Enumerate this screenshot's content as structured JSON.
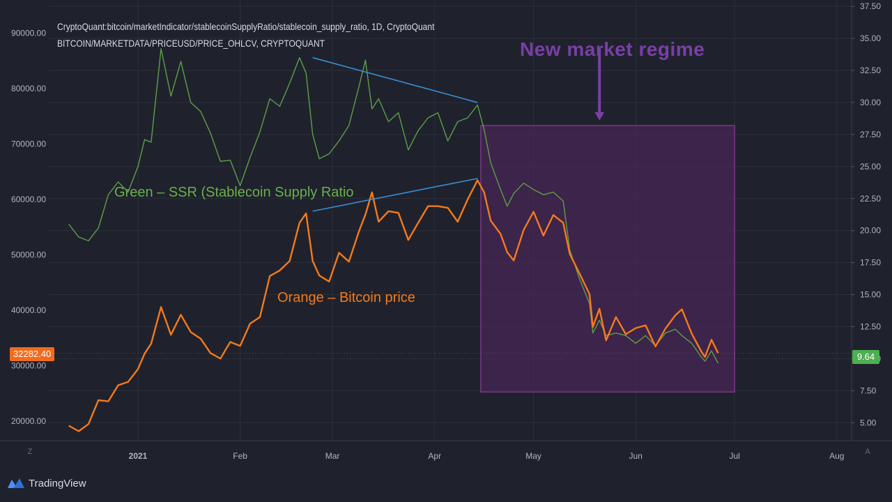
{
  "header": {
    "line1": "CryptoQuant:bitcoin/marketIndicator/stablecoinSupplyRatio/stablecoin_supply_ratio, 1D, CryptoQuant",
    "line2": "BITCOIN/MARKETDATA/PRICEUSD/PRICE_OHLCV, CRYPTOQUANT"
  },
  "annotations": {
    "regime_title": "New  market regime",
    "green_label": "Green – SSR (Stablecoin Supply Ratio",
    "orange_label": "Orange – Bitcoin price"
  },
  "badges": {
    "price": "32282.40",
    "ssr": "9.64"
  },
  "axis_buttons": {
    "left": "Z",
    "right": "A"
  },
  "footer": {
    "brand": "TradingView",
    "logo_icon": "tradingview-logo-icon"
  },
  "colors": {
    "background": "#1f222c",
    "grid": "#2c303b",
    "btc_price": "#f57a1c",
    "ssr": "#5e9e4a",
    "trendline": "#3a8fd6",
    "regime_box_border": "#a040b0",
    "regime_box_fill": "#4a2656",
    "regime_arrow": "#7a3fa8"
  },
  "chart_data": {
    "type": "line",
    "x_ticks": [
      "2021",
      "Feb",
      "Mar",
      "Apr",
      "May",
      "Jun",
      "Jul",
      "Aug"
    ],
    "x_tick_dates": [
      "2021-01-01",
      "2021-02-01",
      "2021-03-01",
      "2021-04-01",
      "2021-05-01",
      "2021-06-01",
      "2021-07-01",
      "2021-08-01"
    ],
    "x_range": [
      "2020-12-11",
      "2021-08-01"
    ],
    "left_axis": {
      "ticks": [
        "20000.00",
        "30000.00",
        "40000.00",
        "50000.00",
        "60000.00",
        "70000.00",
        "80000.00",
        "90000.00"
      ],
      "range": [
        16500,
        96000
      ]
    },
    "right_axis": {
      "ticks": [
        "5.00",
        "7.50",
        "10.00",
        "12.50",
        "15.00",
        "17.50",
        "20.00",
        "22.50",
        "25.00",
        "27.50",
        "30.00",
        "32.50",
        "35.00",
        "37.50"
      ],
      "range": [
        3.6,
        38.0
      ]
    },
    "grid": true,
    "series": [
      {
        "axis": "left",
        "x": [
          "2020-12-11",
          "2020-12-14",
          "2020-12-17",
          "2020-12-20",
          "2020-12-23",
          "2020-12-26",
          "2020-12-29",
          "2021-01-01",
          "2021-01-03",
          "2021-01-05",
          "2021-01-08",
          "2021-01-11",
          "2021-01-14",
          "2021-01-17",
          "2021-01-20",
          "2021-01-23",
          "2021-01-26",
          "2021-01-29",
          "2021-02-01",
          "2021-02-04",
          "2021-02-07",
          "2021-02-10",
          "2021-02-13",
          "2021-02-16",
          "2021-02-19",
          "2021-02-21",
          "2021-02-23",
          "2021-02-25",
          "2021-02-28",
          "2021-03-03",
          "2021-03-06",
          "2021-03-09",
          "2021-03-11",
          "2021-03-13",
          "2021-03-15",
          "2021-03-18",
          "2021-03-21",
          "2021-03-24",
          "2021-03-27",
          "2021-03-30",
          "2021-04-02",
          "2021-04-05",
          "2021-04-08",
          "2021-04-11",
          "2021-04-14",
          "2021-04-16",
          "2021-04-18",
          "2021-04-21",
          "2021-04-23",
          "2021-04-25",
          "2021-04-28",
          "2021-05-01",
          "2021-05-04",
          "2021-05-07",
          "2021-05-10",
          "2021-05-12",
          "2021-05-15",
          "2021-05-18",
          "2021-05-19",
          "2021-05-21",
          "2021-05-23",
          "2021-05-26",
          "2021-05-29",
          "2021-06-01",
          "2021-06-04",
          "2021-06-07",
          "2021-06-10",
          "2021-06-13",
          "2021-06-15",
          "2021-06-18",
          "2021-06-21",
          "2021-06-22",
          "2021-06-24",
          "2021-06-26"
        ],
        "values": [
          19200,
          18200,
          19500,
          23800,
          23600,
          26500,
          27100,
          29400,
          32200,
          34000,
          40600,
          35600,
          39200,
          36100,
          34900,
          32300,
          31300,
          34300,
          33600,
          37600,
          38800,
          46200,
          47200,
          48900,
          55800,
          57500,
          48900,
          46300,
          45200,
          50400,
          48800,
          54200,
          57300,
          61300,
          56000,
          57900,
          57600,
          52700,
          55800,
          58800,
          58800,
          58500,
          56000,
          60000,
          63500,
          61300,
          56200,
          53800,
          50500,
          49000,
          54500,
          57800,
          53500,
          57200,
          55800,
          50200,
          46600,
          42900,
          37000,
          40300,
          34600,
          38800,
          35700,
          36800,
          37300,
          33500,
          36700,
          39100,
          40200,
          35800,
          32500,
          31600,
          34700,
          32282.4
        ]
      },
      {
        "axis": "right",
        "x": [
          "2020-12-11",
          "2020-12-14",
          "2020-12-17",
          "2020-12-20",
          "2020-12-23",
          "2020-12-26",
          "2020-12-29",
          "2021-01-01",
          "2021-01-03",
          "2021-01-05",
          "2021-01-08",
          "2021-01-11",
          "2021-01-14",
          "2021-01-17",
          "2021-01-20",
          "2021-01-23",
          "2021-01-26",
          "2021-01-29",
          "2021-02-01",
          "2021-02-04",
          "2021-02-07",
          "2021-02-10",
          "2021-02-13",
          "2021-02-16",
          "2021-02-19",
          "2021-02-21",
          "2021-02-23",
          "2021-02-25",
          "2021-02-28",
          "2021-03-03",
          "2021-03-06",
          "2021-03-09",
          "2021-03-11",
          "2021-03-13",
          "2021-03-15",
          "2021-03-18",
          "2021-03-21",
          "2021-03-24",
          "2021-03-27",
          "2021-03-30",
          "2021-04-02",
          "2021-04-05",
          "2021-04-08",
          "2021-04-11",
          "2021-04-14",
          "2021-04-16",
          "2021-04-18",
          "2021-04-21",
          "2021-04-23",
          "2021-04-25",
          "2021-04-28",
          "2021-05-01",
          "2021-05-04",
          "2021-05-07",
          "2021-05-10",
          "2021-05-12",
          "2021-05-15",
          "2021-05-18",
          "2021-05-19",
          "2021-05-21",
          "2021-05-23",
          "2021-05-26",
          "2021-05-29",
          "2021-06-01",
          "2021-06-04",
          "2021-06-07",
          "2021-06-10",
          "2021-06-13",
          "2021-06-15",
          "2021-06-18",
          "2021-06-21",
          "2021-06-22",
          "2021-06-24",
          "2021-06-26"
        ],
        "values": [
          20.5,
          19.5,
          19.2,
          20.2,
          22.8,
          23.8,
          23.0,
          25.0,
          27.1,
          26.9,
          34.2,
          30.5,
          33.2,
          30.0,
          29.3,
          27.6,
          25.4,
          25.5,
          23.5,
          25.7,
          27.7,
          30.3,
          29.7,
          31.5,
          33.5,
          32.3,
          27.5,
          25.6,
          26.0,
          27.0,
          28.2,
          31.2,
          33.3,
          29.5,
          30.3,
          28.5,
          29.2,
          26.3,
          27.8,
          28.8,
          29.2,
          27.0,
          28.5,
          28.8,
          29.8,
          27.9,
          25.3,
          23.2,
          21.9,
          22.9,
          23.7,
          23.2,
          22.8,
          23.0,
          22.3,
          18.5,
          16.2,
          14.3,
          12.0,
          13.0,
          11.8,
          12.0,
          11.8,
          11.2,
          11.8,
          11.0,
          12.0,
          12.3,
          11.8,
          11.2,
          10.1,
          9.8,
          10.6,
          9.64
        ]
      }
    ],
    "trendlines": [
      {
        "axis": "right",
        "from": {
          "x": "2021-02-23",
          "y": 33.5
        },
        "to": {
          "x": "2021-04-14",
          "y": 30.0
        }
      },
      {
        "axis": "left",
        "from": {
          "x": "2021-02-23",
          "y": 57900
        },
        "to": {
          "x": "2021-04-14",
          "y": 63800
        }
      }
    ],
    "shaded_region": {
      "x": [
        "2021-04-15",
        "2021-07-01"
      ],
      "right_axis_y": [
        7.4,
        28.2
      ]
    },
    "regime_arrow": {
      "x": "2021-05-21",
      "right_axis_y": [
        34.2,
        28.6
      ]
    }
  }
}
